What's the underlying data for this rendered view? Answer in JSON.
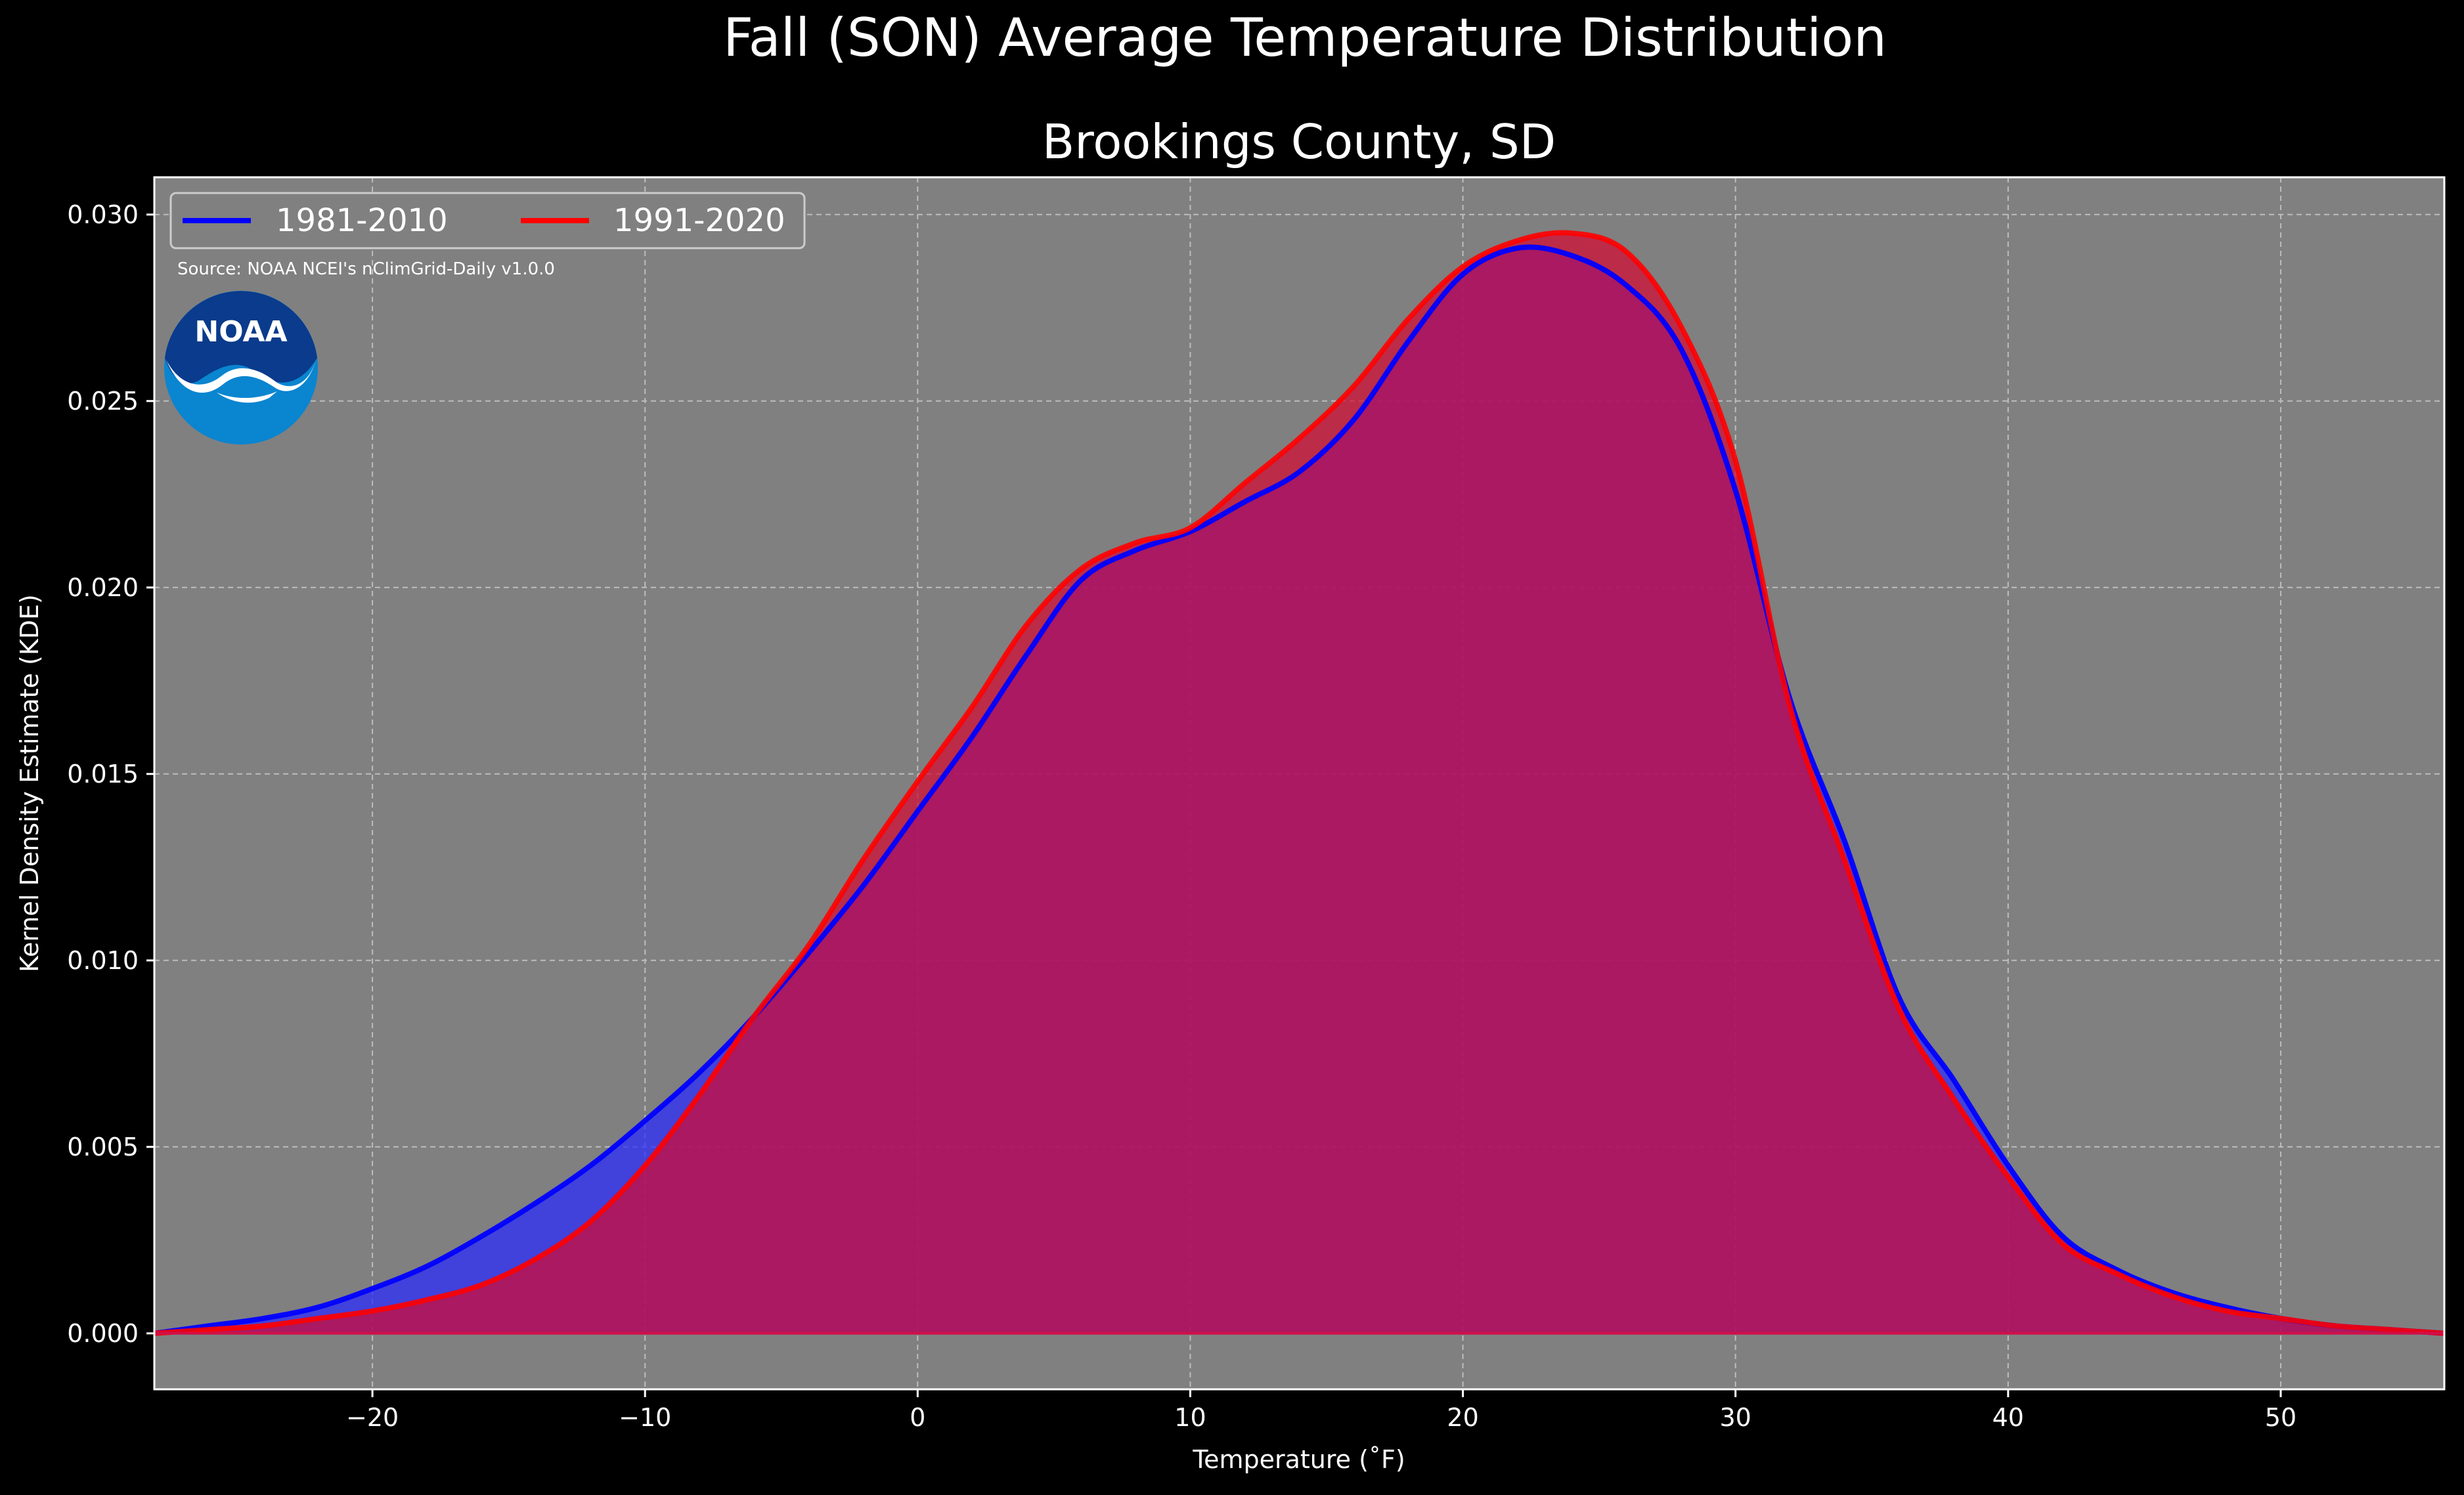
{
  "chart_data": {
    "type": "area",
    "title": "Fall (SON) Average Temperature Distribution",
    "subtitle": "Brookings County, SD",
    "xlabel": "Temperature (˚F)",
    "ylabel": "Kernel Density Estimate (KDE)",
    "xlim": [
      -28,
      56
    ],
    "ylim": [
      -0.0015,
      0.031
    ],
    "xticks": [
      -20,
      -10,
      0,
      10,
      20,
      30,
      40,
      50
    ],
    "xtick_labels": [
      "−20",
      "−10",
      "0",
      "10",
      "20",
      "30",
      "40",
      "50"
    ],
    "yticks": [
      0,
      0.005,
      0.01,
      0.015,
      0.02,
      0.025,
      0.03
    ],
    "ytick_labels": [
      "0.000",
      "0.005",
      "0.010",
      "0.015",
      "0.020",
      "0.025",
      "0.030"
    ],
    "grid": true,
    "legend_position": "top-left",
    "source_note": "Source: NOAA NCEI's nClimGrid-Daily v1.0.0",
    "logo_text": "NOAA",
    "colors": {
      "figure_bg": "#000000",
      "plot_bg": "#808080",
      "blue": "#0000ff",
      "red": "#ff0000",
      "overlap": "#9c1f5d"
    },
    "series": [
      {
        "name": "1981-2010",
        "color": "#0000ff",
        "x": [
          -28,
          -26,
          -24,
          -22,
          -20,
          -18,
          -16,
          -14,
          -12,
          -10,
          -8,
          -6,
          -4,
          -2,
          0,
          2,
          4,
          6,
          8,
          10,
          12,
          14,
          16,
          18,
          20,
          22,
          24,
          26,
          28,
          30,
          32,
          34,
          36,
          38,
          40,
          42,
          44,
          46,
          48,
          50,
          52,
          54,
          56
        ],
        "y": [
          0.0,
          0.0002,
          0.0004,
          0.0007,
          0.0012,
          0.0018,
          0.0026,
          0.0035,
          0.0045,
          0.0057,
          0.007,
          0.0085,
          0.0102,
          0.012,
          0.014,
          0.016,
          0.0182,
          0.0202,
          0.021,
          0.0215,
          0.0223,
          0.0231,
          0.0245,
          0.0266,
          0.0284,
          0.0291,
          0.0289,
          0.0281,
          0.0264,
          0.0226,
          0.017,
          0.0132,
          0.009,
          0.0068,
          0.0045,
          0.0026,
          0.0017,
          0.0011,
          0.0007,
          0.0004,
          0.0002,
          0.0001,
          0.0
        ]
      },
      {
        "name": "1991-2020",
        "color": "#ff0000",
        "x": [
          -28,
          -26,
          -24,
          -22,
          -20,
          -18,
          -16,
          -14,
          -12,
          -10,
          -8,
          -6,
          -4,
          -2,
          0,
          2,
          4,
          6,
          8,
          10,
          12,
          14,
          16,
          18,
          20,
          22,
          24,
          26,
          28,
          30,
          32,
          34,
          36,
          38,
          40,
          42,
          44,
          46,
          48,
          50,
          52,
          54,
          56
        ],
        "y": [
          0.0,
          0.0001,
          0.0002,
          0.0004,
          0.0006,
          0.0009,
          0.0013,
          0.002,
          0.003,
          0.0045,
          0.0064,
          0.0085,
          0.0104,
          0.0127,
          0.0148,
          0.0168,
          0.019,
          0.0205,
          0.0212,
          0.0216,
          0.0228,
          0.024,
          0.0254,
          0.0272,
          0.0286,
          0.0293,
          0.0295,
          0.029,
          0.027,
          0.0234,
          0.0168,
          0.0127,
          0.0087,
          0.0063,
          0.0042,
          0.0024,
          0.0016,
          0.001,
          0.0006,
          0.0004,
          0.0002,
          0.0001,
          0.0
        ]
      }
    ]
  }
}
